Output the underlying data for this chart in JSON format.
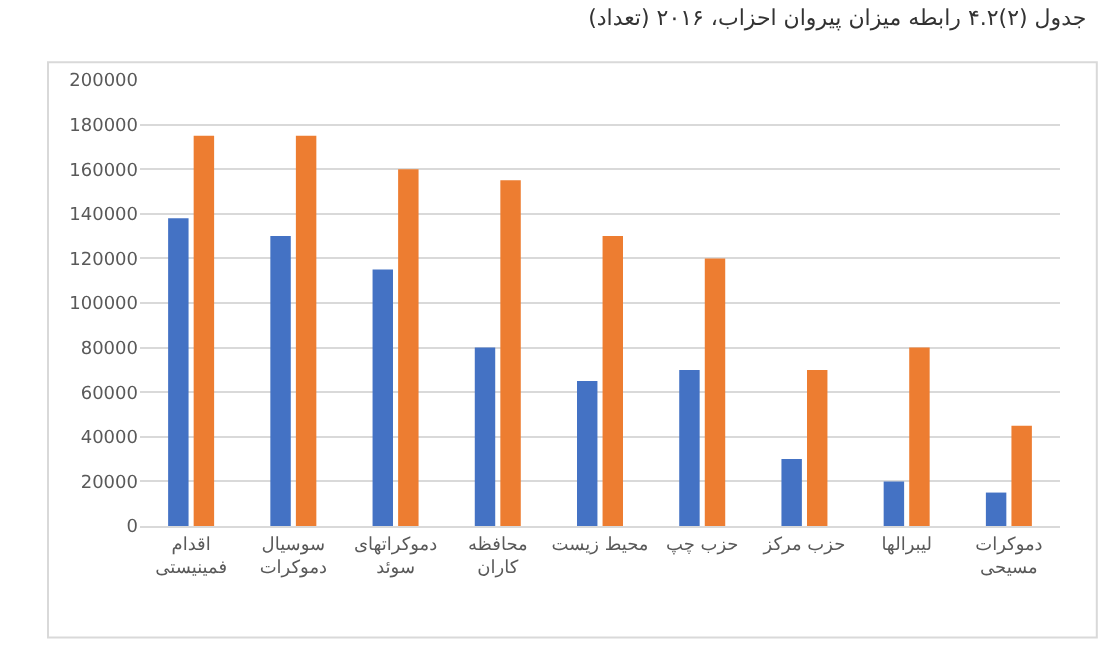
{
  "chart_data": {
    "type": "bar",
    "title": "جدول (۲)۴.۲ رابطه میزان پیروان احزاب، ۲۰۱۶ (تعداد)",
    "categories": [
      "اقدام فمینیستی",
      "سوسیال دموکرات",
      "دموکراتهای سوئد",
      "محافظه کاران",
      "محیط زیست",
      "حزب چپ",
      "حزب مرکز",
      "لیبرالها",
      "دموکرات مسیحی"
    ],
    "series": [
      {
        "color": "#4472c4",
        "values": [
          138000,
          130000,
          115000,
          80000,
          65000,
          70000,
          30000,
          20000,
          15000
        ]
      },
      {
        "color": "#ed7d31",
        "values": [
          175000,
          175000,
          160000,
          155000,
          130000,
          120000,
          70000,
          80000,
          45000
        ]
      }
    ],
    "ylim": [
      0,
      200000
    ],
    "yticks": [
      0,
      20000,
      40000,
      60000,
      80000,
      100000,
      120000,
      140000,
      160000,
      180000,
      200000
    ],
    "grid": "y"
  }
}
